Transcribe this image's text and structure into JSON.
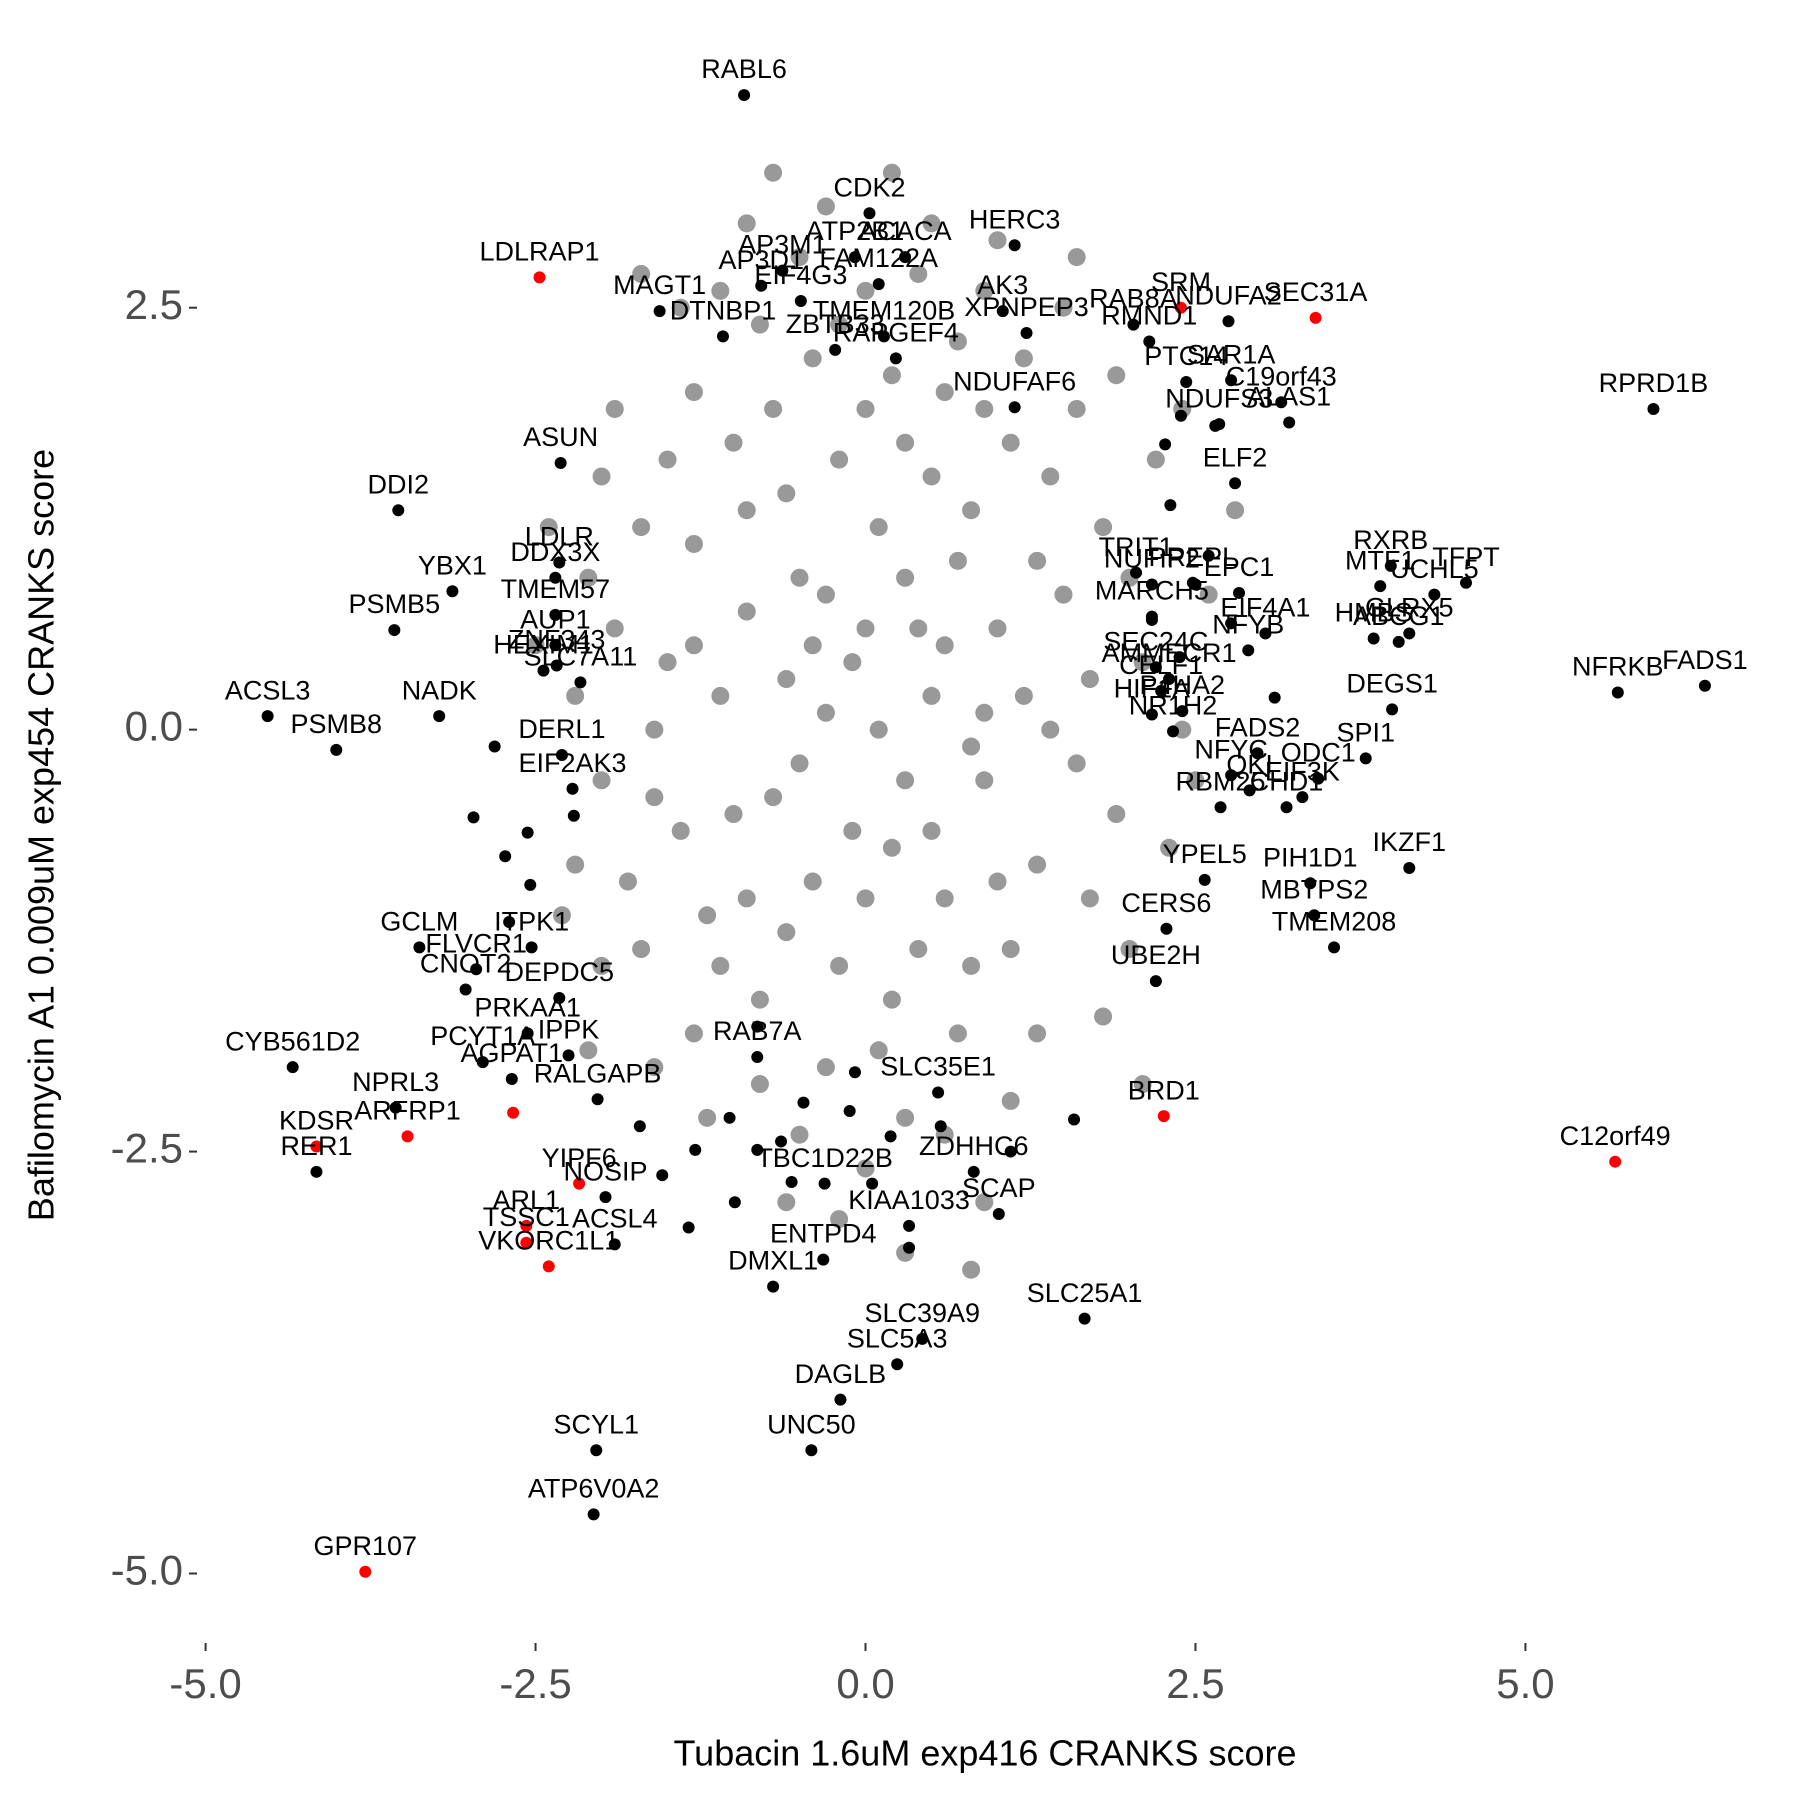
{
  "chart_data": {
    "type": "scatter",
    "x_label": "Tubacin 1.6uM exp416 CRANKS score",
    "y_label": "Bafilomycin A1 0.009uM exp454 CRANKS score",
    "xlim": [
      -5.05,
      6.55
    ],
    "ylim": [
      -5.4,
      3.95
    ],
    "xticks": [
      {
        "value": -5,
        "label": "-5.0"
      },
      -2.5,
      {
        "value": 0,
        "label": "0.0"
      },
      2.5,
      {
        "value": 5,
        "label": "5.0"
      }
    ],
    "yticks": [
      {
        "value": -5,
        "label": "-5.0"
      },
      -2.5,
      {
        "value": 0,
        "label": "0.0"
      },
      2.5
    ],
    "grid": false,
    "series": [
      {
        "color": "#999999",
        "x": [
          -0.1,
          0.3,
          -0.5,
          0.8,
          -0.9,
          1.2,
          -1.3,
          0.5,
          -0.2,
          0.0,
          1.5,
          -1.6,
          0.9,
          -0.7,
          0.2,
          -0.4,
          1.1,
          -1.0,
          0.6,
          -0.3,
          1.8,
          -1.9,
          0.4,
          -0.6,
          0.1,
          1.3,
          -1.2,
          0.7,
          -0.8,
          0.3,
          1.6,
          -1.5,
          0.0,
          -0.5,
          0.9,
          -1.1,
          0.2,
          -0.2,
          1.4,
          -1.4,
          0.5,
          -0.9,
          1.0,
          -0.6,
          0.1,
          -0.3,
          1.7,
          -1.7,
          0.6,
          -0.1,
          2.0,
          -2.0,
          0.8,
          -0.8,
          1.2,
          -1.3,
          0.4,
          -0.4,
          1.9,
          -1.8,
          0.0,
          0.5,
          -0.5,
          1.0,
          -1.0,
          0.3,
          -0.7,
          1.4,
          -1.5,
          0.7,
          -0.2,
          0.2,
          1.6,
          -1.6,
          0.9,
          -0.9,
          0.1,
          -0.3,
          2.1,
          -2.1,
          1.1,
          -1.1,
          0.6,
          -0.6,
          1.3,
          -1.3,
          0.0,
          0.4,
          -0.4,
          0.8,
          2.2,
          -2.0,
          1.7,
          -1.7,
          0.3,
          -0.5,
          0.9,
          -1.1,
          2.4,
          -2.2,
          1.5,
          -1.4,
          0.7,
          -0.8,
          1.9,
          -1.9,
          2.3,
          -2.2,
          0.5,
          -0.3,
          1.0,
          -0.9,
          2.0,
          -2.0,
          1.3,
          -1.3,
          0.0,
          0.6,
          -0.6,
          2.6,
          -2.4,
          2.4,
          -2.3,
          1.8,
          -1.6,
          0.2,
          -0.7,
          2.5,
          1.1,
          -1.2,
          0.9,
          -0.2,
          2.8,
          -2.5,
          1.6,
          -1.7,
          2.1,
          -2.1,
          0.3,
          0.8
        ],
        "values": [
          0.4,
          0.9,
          -0.2,
          1.3,
          0.7,
          0.2,
          1.1,
          -0.6,
          1.6,
          -1.0,
          0.8,
          0.0,
          -0.3,
          1.9,
          2.1,
          -0.9,
          1.7,
          -0.5,
          0.5,
          0.1,
          1.2,
          0.6,
          -1.3,
          0.3,
          1.2,
          -0.8,
          -1.1,
          2.3,
          2.4,
          -0.3,
          -0.2,
          1.6,
          2.6,
          2.8,
          1.9,
          0.2,
          -1.6,
          -1.4,
          1.5,
          -0.6,
          1.5,
          1.3,
          0.6,
          -1.2,
          0.0,
          0.8,
          0.3,
          1.2,
          -1.0,
          -0.6,
          0.9,
          -0.3,
          -1.4,
          -1.6,
          2.2,
          2.0,
          2.7,
          2.2,
          -0.5,
          -0.9,
          0.6,
          0.2,
          0.9,
          -0.9,
          1.7,
          1.7,
          -0.4,
          0.0,
          0.4,
          1.0,
          2.4,
          -0.7,
          1.9,
          -0.4,
          0.1,
          -1.0,
          -1.9,
          -2.0,
          0.4,
          0.9,
          -1.3,
          -1.4,
          2.0,
          1.4,
          1.0,
          0.5,
          1.9,
          0.6,
          0.5,
          -0.1,
          1.6,
          1.5,
          -1.0,
          -1.3,
          -2.3,
          -2.4,
          2.6,
          2.6,
          0.0,
          0.2,
          2.5,
          2.5,
          -1.8,
          -2.1,
          2.1,
          1.9,
          -0.7,
          -0.8,
          3.0,
          3.1,
          2.9,
          3.0,
          -1.3,
          -1.4,
          -1.8,
          -1.8,
          -2.6,
          -2.4,
          -2.8,
          0.8,
          1.2,
          1.9,
          -1.1,
          -1.7,
          -2.0,
          3.3,
          3.3,
          -0.3,
          -2.2,
          -2.3,
          -2.8,
          -2.9,
          1.3,
          0.5,
          2.8,
          2.7,
          -2.1,
          -1.9,
          -3.1,
          -3.2
        ]
      },
      {
        "color": "#000000",
        "x": [
          -0.92,
          0.03,
          0.3,
          -0.08,
          1.13,
          2.03,
          -0.63,
          0.1,
          -0.79,
          -1.56,
          2.15,
          2.75,
          0.14,
          -1.08,
          -0.49,
          1.22,
          1.04,
          -0.23,
          0.23,
          2.77,
          2.43,
          3.15,
          3.21,
          5.97,
          1.13,
          -2.31,
          -3.54,
          2.68,
          2.8,
          3.98,
          2.05,
          2.48,
          -2.35,
          -2.32,
          -3.13,
          3.9,
          4.55,
          4.31,
          2.83,
          2.17,
          -2.35,
          -2.35,
          -3.57,
          4.12,
          3.03,
          2.17,
          2.2,
          2.9,
          -2.34,
          -2.44,
          -4.53,
          -3.23,
          3.85,
          4.04,
          6.36,
          5.7,
          2.3,
          -2.3,
          -2.16,
          -2.22,
          2.17,
          2.24,
          2.4,
          3.99,
          2.97,
          3.79,
          -4.01,
          2.33,
          2.77,
          3.43,
          2.69,
          2.91,
          3.19,
          4.12,
          -3.38,
          2.57,
          3.31,
          3.37,
          -3.03,
          -2.95,
          -2.53,
          3.55,
          2.28,
          3.4,
          -2.9,
          -2.56,
          -2.32,
          2.2,
          -4.34,
          -2.25,
          -0.82,
          -2.68,
          0.55,
          -3.56,
          0.82,
          1.01,
          -1.97,
          -4.16,
          -0.31,
          0.33,
          -1.9,
          -0.7,
          -0.32,
          1.66,
          0.43,
          -0.19,
          0.24,
          -0.41,
          -2.04,
          -2.06,
          -2.03,
          -2.81,
          -2.97,
          -2.73,
          -2.56,
          -2.21,
          -2.7,
          -2.54,
          -1.71,
          -1.29,
          -1.03,
          -0.82,
          -0.64,
          -0.47,
          -0.12,
          0.19,
          0.57,
          1.1,
          1.58,
          2.17,
          2.31,
          2.6,
          2.27,
          2.38,
          2.5,
          2.77,
          3.1,
          2.65,
          2.39,
          -0.56,
          -0.99,
          -1.54,
          -1.34,
          0.05,
          0.33,
          -0.08,
          -0.82
        ],
        "values": [
          3.76,
          3.06,
          2.8,
          2.8,
          2.87,
          2.4,
          2.72,
          2.64,
          2.63,
          2.48,
          2.3,
          2.42,
          2.33,
          2.33,
          2.54,
          2.35,
          2.48,
          2.25,
          2.2,
          2.07,
          2.06,
          1.94,
          1.82,
          1.9,
          1.91,
          1.58,
          1.3,
          1.81,
          1.46,
          0.97,
          0.93,
          0.87,
          0.9,
          0.99,
          0.82,
          0.85,
          0.87,
          0.8,
          0.81,
          0.86,
          0.68,
          0.5,
          0.59,
          0.57,
          0.57,
          0.67,
          0.37,
          0.47,
          0.38,
          0.35,
          0.08,
          0.08,
          0.54,
          0.52,
          0.26,
          0.22,
          0.3,
          -0.15,
          0.28,
          -0.35,
          0.09,
          0.23,
          0.11,
          0.12,
          -0.14,
          -0.17,
          -0.12,
          -0.01,
          -0.27,
          -0.29,
          -0.46,
          -0.36,
          -0.46,
          -0.82,
          -1.29,
          -0.89,
          -0.4,
          -0.91,
          -1.54,
          -1.42,
          -1.29,
          -1.29,
          -1.18,
          -1.1,
          -1.97,
          -1.8,
          -1.59,
          -1.49,
          -2.0,
          -1.93,
          -1.94,
          -2.07,
          -2.15,
          -2.24,
          -2.62,
          -2.87,
          -2.77,
          -2.62,
          -2.69,
          -2.94,
          -3.05,
          -3.3,
          -3.14,
          -3.49,
          -3.61,
          -3.97,
          -3.76,
          -4.27,
          -4.27,
          -4.65,
          -2.19,
          -0.1,
          -0.52,
          -0.75,
          -0.61,
          -0.51,
          -1.14,
          -0.92,
          -2.35,
          -2.49,
          -2.3,
          -2.49,
          -2.44,
          -2.21,
          -2.26,
          -2.41,
          -2.35,
          -2.5,
          -2.31,
          0.65,
          1.33,
          1.03,
          1.69,
          0.43,
          0.86,
          0.63,
          0.19,
          1.8,
          1.86,
          -2.68,
          -2.8,
          -2.64,
          -2.95,
          -2.69,
          -3.07,
          -2.03,
          -1.76
        ],
        "labels": [
          "RABL6",
          "CDK2",
          "ACACA",
          "ATP2B1",
          "HERC3",
          "RAB8A",
          "AP3M1",
          "FAM122A",
          "AP3D1",
          "MAGT1",
          "RMND1",
          "NDUFA2",
          "TMEM120B",
          "DTNBP1",
          "EIF4G3",
          "XPNPEP3",
          "AK3",
          "ZBTB33",
          "RAPGEF4",
          "SAR1A",
          "PTC14",
          "C19orf43",
          "ALAS1",
          "RPRD1B",
          "NDUFAF6",
          "ASUN",
          "DDI2",
          "NDUFS3",
          "ELF2",
          "RXRB",
          "TRIT1",
          "PREPL",
          "DDX3X",
          "LDLR",
          "YBX1",
          "MTF1",
          "TFPT",
          "UCHL5",
          "EPC1",
          "NUFIP2",
          "TMEM57",
          "AUP1",
          "PSMB5",
          "GLRX5",
          "EIF4A1",
          "MARCH5",
          "SEC24C",
          "NFYB",
          "ZNF343",
          "HEXIM1",
          "ACSL3",
          "NADK",
          "HMBS",
          "ABCG1",
          "FADS1",
          "NFRKB",
          "AMMECR1",
          "DERL1",
          "SLC7A11",
          "EIF2AK3",
          "HIF1A",
          "CELF1",
          "P4HA2",
          "DEGS1",
          "FADS2",
          "SPI1",
          "PSMB8",
          "NR1H2",
          "NFYC",
          "ODC1",
          "RBM25",
          "QKI",
          "CHD1",
          "IKZF1",
          "GCLM",
          "YPEL5",
          "EIF3K",
          "PIH1D1",
          "CNOT2",
          "FLVCR1",
          "ITPK1",
          "TMEM208",
          "CERS6",
          "MBTPS2",
          "PCYT1A",
          "PRKAA1",
          "DEPDC5",
          "UBE2H",
          "CYB561D2",
          "IPPK",
          "RAB7A",
          "AGPAT1",
          "SLC35E1",
          "NPRL3",
          "ZDHHC6",
          "SCAP",
          "NOSIP",
          "RER1",
          "TBC1D22B",
          "KIAA1033",
          "ACSL4",
          "DMXL1",
          "ENTPD4",
          "SLC25A1",
          "SLC39A9",
          "DAGLB",
          "SLC5A3",
          "UNC50",
          "SCYL1",
          "ATP6V0A2",
          "RALGAPB",
          null,
          null,
          null,
          null,
          null,
          null,
          null,
          null,
          null,
          null,
          null,
          null,
          null,
          null,
          null,
          null,
          null,
          null,
          null,
          null,
          null,
          null,
          null,
          null,
          null,
          null,
          null,
          null,
          null,
          null,
          null,
          null,
          null,
          null,
          null,
          null
        ]
      },
      {
        "color": "#ff0000",
        "x": [
          -2.47,
          2.39,
          3.41,
          -3.47,
          -4.16,
          2.26,
          5.68,
          -2.17,
          -2.57,
          -2.57,
          -2.4,
          -3.79,
          -2.67
        ],
        "values": [
          2.68,
          2.5,
          2.44,
          -2.41,
          -2.47,
          -2.29,
          -2.56,
          -2.69,
          -2.94,
          -3.04,
          -3.18,
          -4.99,
          -2.27
        ],
        "labels": [
          "LDLRAP1",
          "SRM",
          "SEC31A",
          "ARFRP1",
          "KDSR",
          "BRD1",
          "C12orf49",
          "YIPF6",
          "ARL1",
          "TSSC1",
          "VKORC1L1",
          "GPR107",
          null
        ]
      }
    ]
  }
}
